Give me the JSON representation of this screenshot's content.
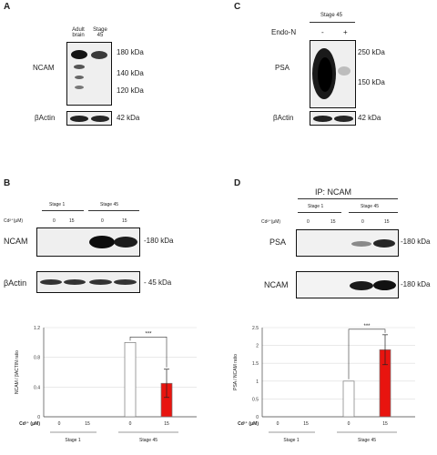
{
  "panel_a": {
    "letter": "A",
    "lanes": [
      "Adult brain",
      "Stage 45"
    ],
    "row_labels": [
      "NCAM",
      "βActin"
    ],
    "markers": [
      "180 kDa",
      "140 kDa",
      "120 kDa",
      "42 kDa"
    ]
  },
  "panel_c": {
    "letter": "C",
    "stage": "Stage 45",
    "treatment": "Endo-N",
    "lanes": [
      "-",
      "+"
    ],
    "row_labels": [
      "PSA",
      "βActin"
    ],
    "markers": [
      "250 kDa",
      "150 kDa",
      "42 kDa"
    ]
  },
  "panel_b": {
    "letter": "B",
    "groups": [
      "Stage 1",
      "Stage 45"
    ],
    "conc_label": "Cd²⁺(μM)",
    "concs": [
      "0",
      "15",
      "0",
      "15"
    ],
    "row_labels": [
      "NCAM",
      "βActin"
    ],
    "markers": [
      "-180 kDa",
      "- 45 kDa"
    ]
  },
  "panel_d": {
    "letter": "D",
    "ip": "IP: NCAM",
    "groups": [
      "Stage 1",
      "Stage 45"
    ],
    "conc_label": "Cd²⁺(μM)",
    "concs": [
      "0",
      "15",
      "0",
      "15"
    ],
    "row_labels": [
      "PSA",
      "NCAM"
    ],
    "markers": [
      "-180 kDa",
      "-180 kDa"
    ]
  },
  "chart_data": [
    {
      "type": "bar",
      "ylabel": "NCAM / βACTIN ratio",
      "ylim": [
        0,
        1.2
      ],
      "yticks": [
        "0",
        "0.4",
        "0.8",
        "1.2"
      ],
      "x_title": "Cd²⁺ (μM)",
      "categories": [
        "0",
        "15",
        "0",
        "15"
      ],
      "groups": [
        "Stage 1",
        "Stage 45"
      ],
      "values": [
        0,
        0,
        1.0,
        0.45
      ],
      "errors": [
        0,
        0,
        0,
        0.19
      ],
      "colors": [
        "#ffffff",
        "#ffffff",
        "#ffffff",
        "#e8140f"
      ],
      "significance": "***"
    },
    {
      "type": "bar",
      "ylabel": "PSA / NCAM ratio",
      "ylim": [
        0,
        2.5
      ],
      "yticks": [
        "0",
        "0.5",
        "1",
        "1.5",
        "2",
        "2.5"
      ],
      "x_title": "Cd²⁺ (μM)",
      "categories": [
        "0",
        "15",
        "0",
        "15"
      ],
      "groups": [
        "Stage 1",
        "Stage 45"
      ],
      "values": [
        0,
        0,
        1.0,
        1.88
      ],
      "errors": [
        0,
        0,
        0,
        0.42
      ],
      "colors": [
        "#ffffff",
        "#ffffff",
        "#ffffff",
        "#e8140f"
      ],
      "significance": "***"
    }
  ]
}
